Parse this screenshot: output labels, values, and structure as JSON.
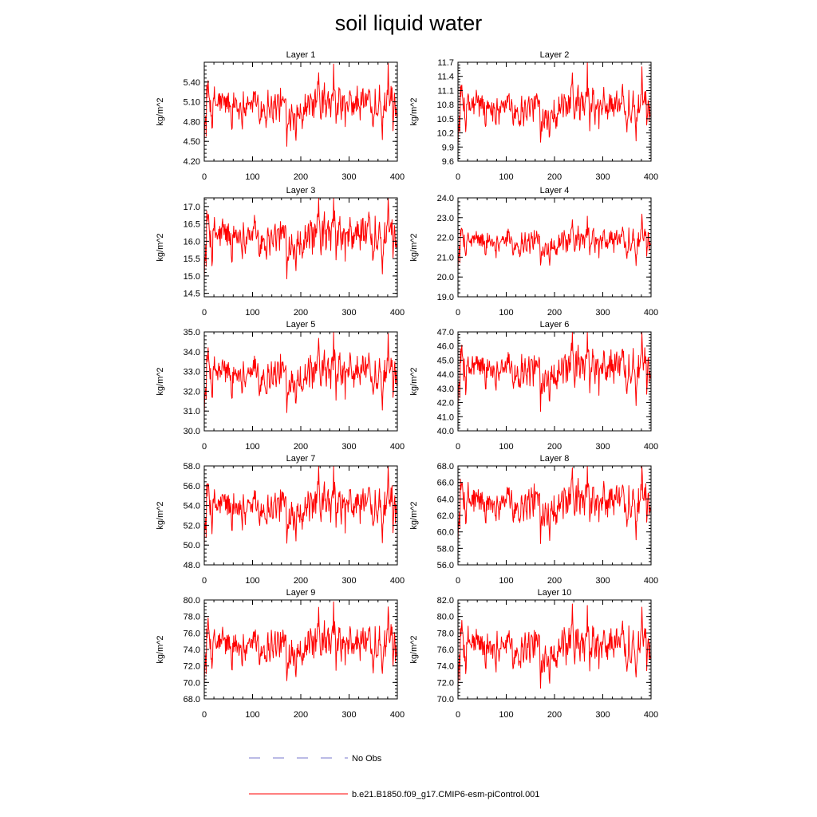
{
  "page_title": "soil liquid water",
  "legend": {
    "obs_label": "No Obs",
    "obs_color": "#7777cc",
    "model_label": "b.e21.B1850.f09_g17.CMIP6-esm-piControl.001",
    "model_color": "#ff0000"
  },
  "chart_data": [
    {
      "type": "line",
      "title": "Layer 1",
      "ylabel": "kg/m^2",
      "xlim": [
        0,
        400
      ],
      "xticks": [
        0,
        100,
        200,
        300,
        400
      ],
      "ylim": [
        4.2,
        5.7
      ],
      "yticks": [
        "4.20",
        "4.50",
        "4.80",
        "5.10",
        "5.40"
      ],
      "mean": 5.05,
      "amp": 0.22,
      "series": [
        {
          "color": "#ff0000"
        }
      ]
    },
    {
      "type": "line",
      "title": "Layer 2",
      "ylabel": "kg/m^2",
      "xlim": [
        0,
        400
      ],
      "xticks": [
        0,
        100,
        200,
        300,
        400
      ],
      "ylim": [
        9.6,
        11.7
      ],
      "yticks": [
        "9.6",
        "9.9",
        "10.2",
        "10.5",
        "10.8",
        "11.1",
        "11.4",
        "11.7"
      ],
      "mean": 10.75,
      "amp": 0.3,
      "series": [
        {
          "color": "#ff0000"
        }
      ]
    },
    {
      "type": "line",
      "title": "Layer 3",
      "ylabel": "kg/m^2",
      "xlim": [
        0,
        400
      ],
      "xticks": [
        0,
        100,
        200,
        300,
        400
      ],
      "ylim": [
        14.4,
        17.25
      ],
      "yticks": [
        "14.5",
        "15.0",
        "15.5",
        "16.0",
        "16.5",
        "17.0"
      ],
      "mean": 16.15,
      "amp": 0.45,
      "series": [
        {
          "color": "#ff0000"
        }
      ]
    },
    {
      "type": "line",
      "title": "Layer 4",
      "ylabel": "kg/m^2",
      "xlim": [
        0,
        400
      ],
      "xticks": [
        0,
        100,
        200,
        300,
        400
      ],
      "ylim": [
        19.0,
        24.0
      ],
      "yticks": [
        "19.0",
        "20.0",
        "21.0",
        "22.0",
        "23.0",
        "24.0"
      ],
      "mean": 21.8,
      "amp": 0.5,
      "series": [
        {
          "color": "#ff0000"
        }
      ]
    },
    {
      "type": "line",
      "title": "Layer 5",
      "ylabel": "kg/m^2",
      "xlim": [
        0,
        400
      ],
      "xticks": [
        0,
        100,
        200,
        300,
        400
      ],
      "ylim": [
        30.0,
        35.0
      ],
      "yticks": [
        "30.0",
        "31.0",
        "32.0",
        "33.0",
        "34.0",
        "35.0"
      ],
      "mean": 32.9,
      "amp": 0.75,
      "series": [
        {
          "color": "#ff0000"
        }
      ]
    },
    {
      "type": "line",
      "title": "Layer 6",
      "ylabel": "kg/m^2",
      "xlim": [
        0,
        400
      ],
      "xticks": [
        0,
        100,
        200,
        300,
        400
      ],
      "ylim": [
        40.0,
        47.0
      ],
      "yticks": [
        "40.0",
        "41.0",
        "42.0",
        "43.0",
        "44.0",
        "45.0",
        "46.0",
        "47.0"
      ],
      "mean": 44.4,
      "amp": 1.05,
      "series": [
        {
          "color": "#ff0000"
        }
      ]
    },
    {
      "type": "line",
      "title": "Layer 7",
      "ylabel": "kg/m^2",
      "xlim": [
        0,
        400
      ],
      "xticks": [
        0,
        100,
        200,
        300,
        400
      ],
      "ylim": [
        48.0,
        58.0
      ],
      "yticks": [
        "48.0",
        "50.0",
        "52.0",
        "54.0",
        "56.0",
        "58.0"
      ],
      "mean": 54.0,
      "amp": 1.5,
      "series": [
        {
          "color": "#ff0000"
        }
      ]
    },
    {
      "type": "line",
      "title": "Layer 8",
      "ylabel": "kg/m^2",
      "xlim": [
        0,
        400
      ],
      "xticks": [
        0,
        100,
        200,
        300,
        400
      ],
      "ylim": [
        56.0,
        68.0
      ],
      "yticks": [
        "56.0",
        "58.0",
        "60.0",
        "62.0",
        "64.0",
        "66.0",
        "68.0"
      ],
      "mean": 63.6,
      "amp": 1.8,
      "series": [
        {
          "color": "#ff0000"
        }
      ]
    },
    {
      "type": "line",
      "title": "Layer 9",
      "ylabel": "kg/m^2",
      "xlim": [
        0,
        400
      ],
      "xticks": [
        0,
        100,
        200,
        300,
        400
      ],
      "ylim": [
        68.0,
        80.0
      ],
      "yticks": [
        "68.0",
        "70.0",
        "72.0",
        "74.0",
        "76.0",
        "78.0",
        "80.0"
      ],
      "mean": 74.6,
      "amp": 1.8,
      "series": [
        {
          "color": "#ff0000"
        }
      ]
    },
    {
      "type": "line",
      "title": "Layer 10",
      "ylabel": "kg/m^2",
      "xlim": [
        0,
        400
      ],
      "xticks": [
        0,
        100,
        200,
        300,
        400
      ],
      "ylim": [
        70.0,
        82.0
      ],
      "yticks": [
        "70.0",
        "72.0",
        "74.0",
        "76.0",
        "78.0",
        "80.0",
        "82.0"
      ],
      "mean": 76.4,
      "amp": 1.9,
      "series": [
        {
          "color": "#ff0000"
        }
      ]
    }
  ]
}
